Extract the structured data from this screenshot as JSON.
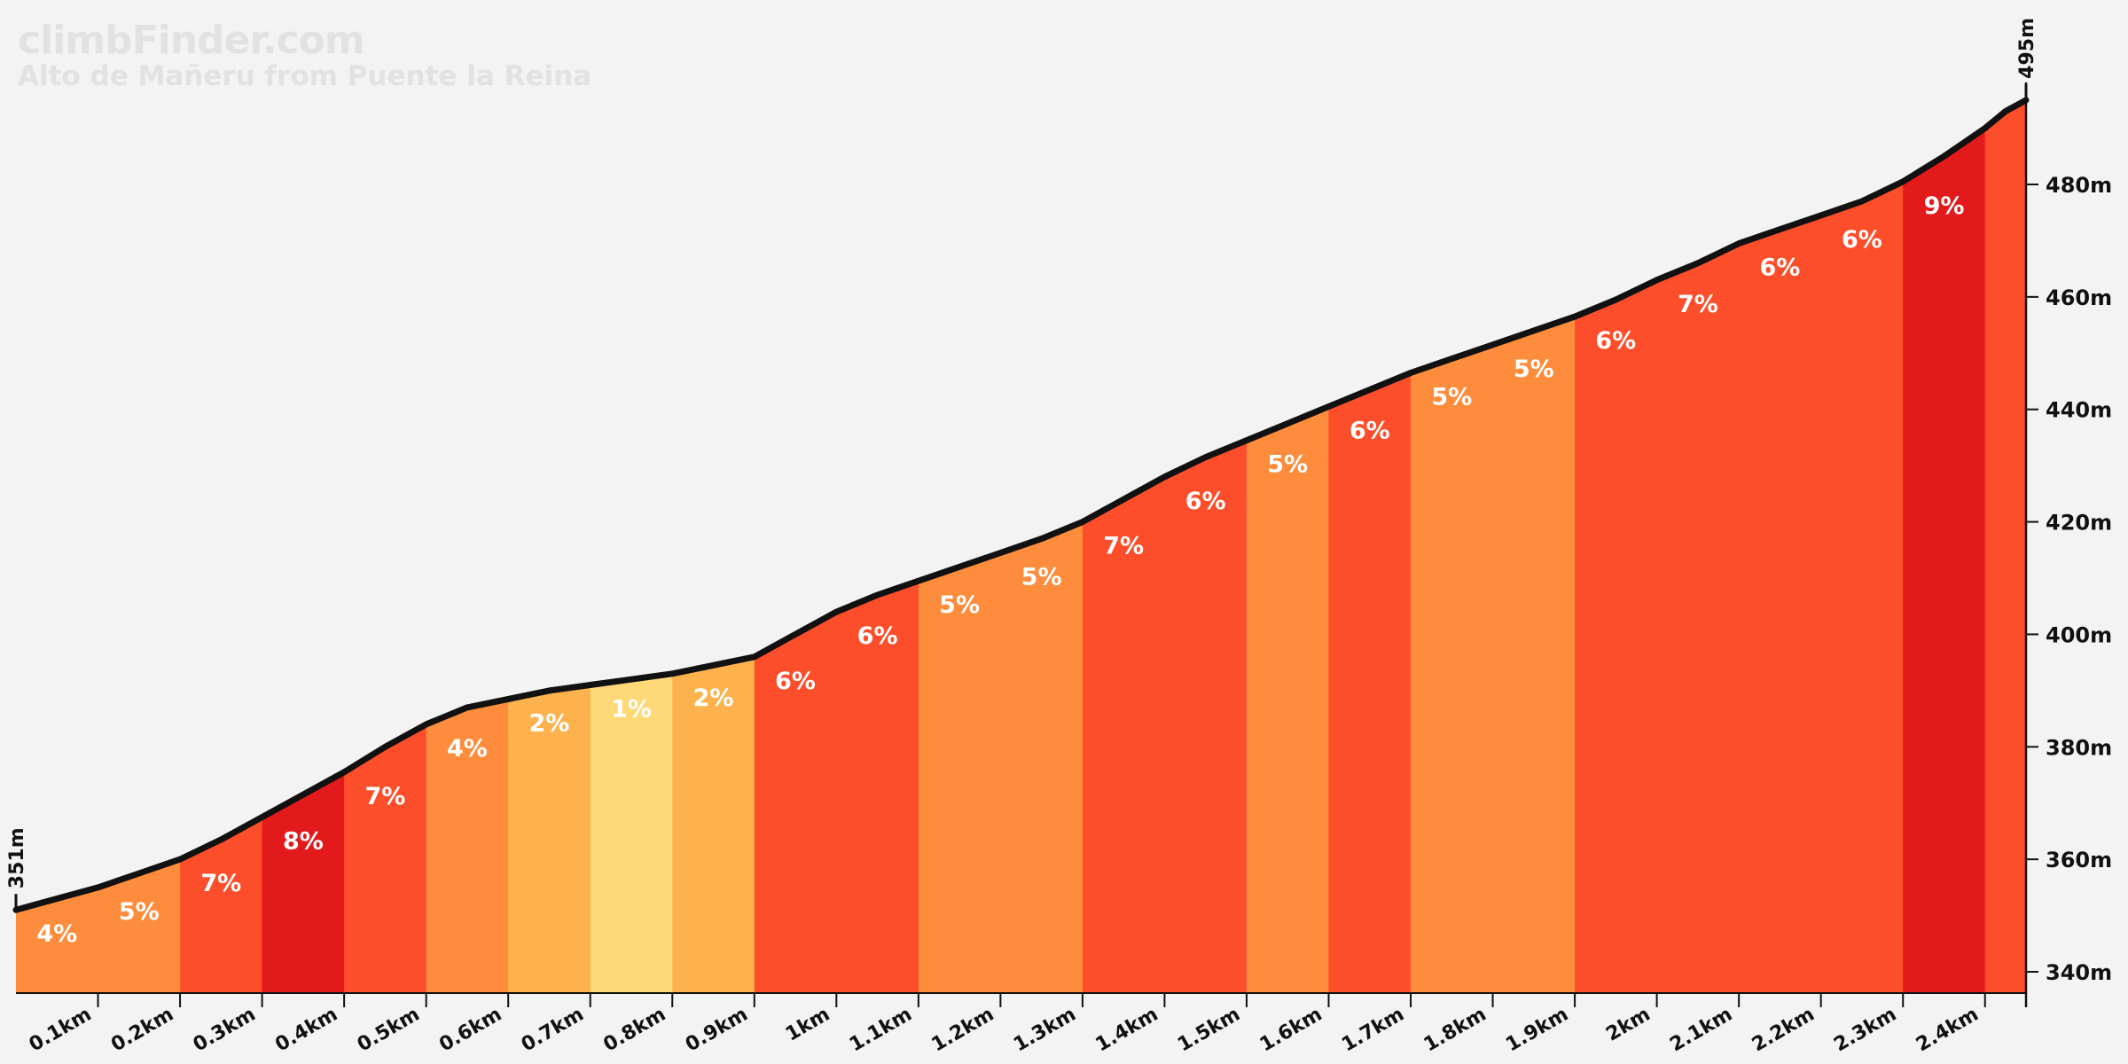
{
  "header": {
    "brand": "climbFinder.com",
    "subtitle": "Alto de Mañeru from Puente la Reina"
  },
  "colors": {
    "background": "#f3f3f3",
    "profile_line": "#111111",
    "grade_1": "#ffd878",
    "grade_2": "#fdb24e",
    "grade_4_5": "#fd8c3c",
    "grade_6_7": "#fc4e2a",
    "grade_8_9": "#e31a1c"
  },
  "chart_data": {
    "type": "area",
    "title": "Alto de Mañeru from Puente la Reina",
    "xlabel": "",
    "ylabel": "",
    "xlim": [
      0,
      2.45
    ],
    "ylim": [
      336,
      495
    ],
    "grid": false,
    "x_ticks": [
      "0.1km",
      "0.2km",
      "0.3km",
      "0.4km",
      "0.5km",
      "0.6km",
      "0.7km",
      "0.8km",
      "0.9km",
      "1km",
      "1.1km",
      "1.2km",
      "1.3km",
      "1.4km",
      "1.5km",
      "1.6km",
      "1.7km",
      "1.8km",
      "1.9km",
      "2km",
      "2.1km",
      "2.2km",
      "2.3km",
      "2.4km"
    ],
    "x_tick_values": [
      0.1,
      0.2,
      0.3,
      0.4,
      0.5,
      0.6,
      0.7,
      0.8,
      0.9,
      1.0,
      1.1,
      1.2,
      1.3,
      1.4,
      1.5,
      1.6,
      1.7,
      1.8,
      1.9,
      2.0,
      2.1,
      2.2,
      2.3,
      2.4
    ],
    "y_ticks": [
      "340m",
      "360m",
      "380m",
      "400m",
      "420m",
      "440m",
      "460m",
      "480m"
    ],
    "y_tick_values": [
      340,
      360,
      380,
      400,
      420,
      440,
      460,
      480
    ],
    "start_label": "351m",
    "end_label": "495m",
    "profile": {
      "distance_km": [
        0,
        0.05,
        0.1,
        0.15,
        0.2,
        0.25,
        0.3,
        0.35,
        0.4,
        0.45,
        0.5,
        0.55,
        0.6,
        0.65,
        0.7,
        0.75,
        0.8,
        0.85,
        0.9,
        0.95,
        1.0,
        1.05,
        1.1,
        1.15,
        1.2,
        1.25,
        1.3,
        1.35,
        1.4,
        1.45,
        1.5,
        1.55,
        1.6,
        1.65,
        1.7,
        1.75,
        1.8,
        1.85,
        1.9,
        1.95,
        2.0,
        2.05,
        2.1,
        2.15,
        2.2,
        2.25,
        2.3,
        2.35,
        2.4,
        2.425,
        2.45
      ],
      "elevation_m": [
        351,
        353,
        355,
        357.5,
        360,
        363.5,
        367.5,
        371.5,
        375.5,
        380,
        384,
        387,
        388.5,
        390,
        391,
        392,
        393,
        394.5,
        396,
        400,
        404,
        407,
        409.5,
        412,
        414.5,
        417,
        420,
        424,
        428,
        431.5,
        434.5,
        437.5,
        440.5,
        443.5,
        446.5,
        449,
        451.5,
        454,
        456.5,
        459.5,
        463,
        466,
        469.5,
        472,
        474.5,
        477,
        480.5,
        485,
        490,
        493,
        495
      ]
    },
    "segments": [
      {
        "label": "4%",
        "grade": 4
      },
      {
        "label": "5%",
        "grade": 5
      },
      {
        "label": "7%",
        "grade": 7
      },
      {
        "label": "8%",
        "grade": 8
      },
      {
        "label": "7%",
        "grade": 7
      },
      {
        "label": "4%",
        "grade": 4
      },
      {
        "label": "2%",
        "grade": 2
      },
      {
        "label": "1%",
        "grade": 1
      },
      {
        "label": "2%",
        "grade": 2
      },
      {
        "label": "6%",
        "grade": 6
      },
      {
        "label": "6%",
        "grade": 6
      },
      {
        "label": "5%",
        "grade": 5
      },
      {
        "label": "5%",
        "grade": 5
      },
      {
        "label": "7%",
        "grade": 7
      },
      {
        "label": "6%",
        "grade": 6
      },
      {
        "label": "5%",
        "grade": 5
      },
      {
        "label": "6%",
        "grade": 6
      },
      {
        "label": "5%",
        "grade": 5
      },
      {
        "label": "5%",
        "grade": 5
      },
      {
        "label": "6%",
        "grade": 6
      },
      {
        "label": "7%",
        "grade": 7
      },
      {
        "label": "6%",
        "grade": 6
      },
      {
        "label": "6%",
        "grade": 6
      },
      {
        "label": "9%",
        "grade": 9
      },
      {
        "label": "",
        "grade": 7
      }
    ]
  }
}
